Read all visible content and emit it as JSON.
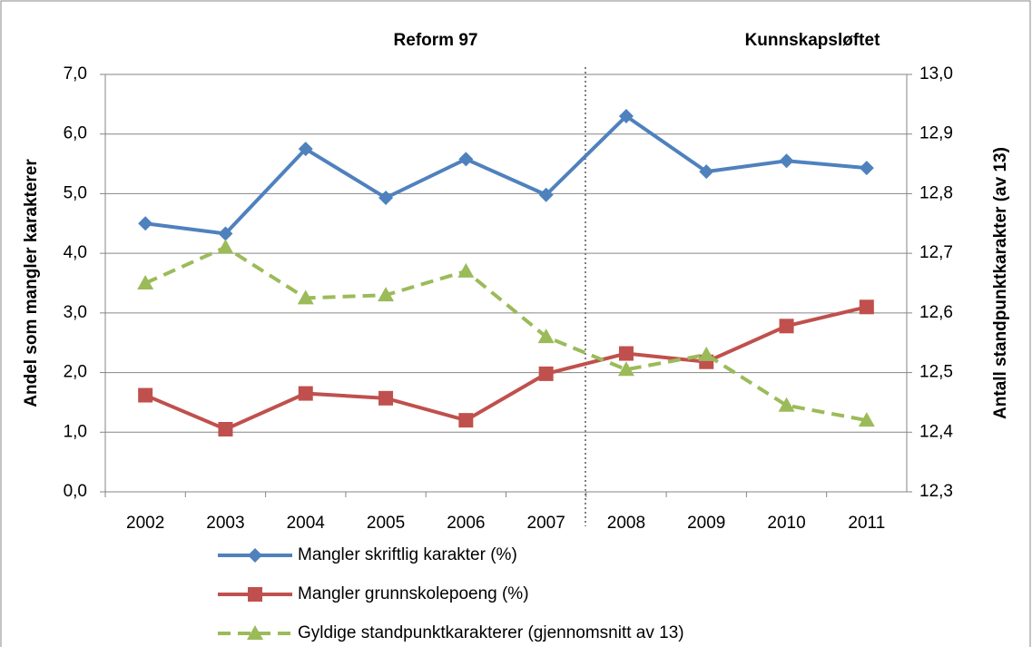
{
  "chart_data": {
    "type": "line",
    "annotations": [
      "Reform 97",
      "Kunnskapsløftet"
    ],
    "ylabel": "Andel som mangler karakterer",
    "y2label": "Antall standpunktkarakter (av 13)",
    "categories": [
      "2002",
      "2003",
      "2004",
      "2005",
      "2006",
      "2007",
      "2008",
      "2009",
      "2010",
      "2011"
    ],
    "series": [
      {
        "name": "Mangler skriftlig karakter (%)",
        "color": "#4f81bd",
        "marker": "diamond",
        "values": [
          4.5,
          4.33,
          5.75,
          4.93,
          5.58,
          4.98,
          6.3,
          5.37,
          5.55,
          5.43
        ]
      },
      {
        "name": "Mangler grunnskolepoeng (%)",
        "color": "#c0504d",
        "marker": "square",
        "values": [
          1.62,
          1.05,
          1.65,
          1.57,
          1.2,
          1.98,
          2.32,
          2.18,
          2.78,
          3.1
        ]
      },
      {
        "name": "Gyldige standpunktkarakterer (gjennomsnitt av 13)",
        "color": "#9bbb59",
        "marker": "triangle",
        "dashed": true,
        "axis": "y2",
        "values": [
          12.65,
          12.71,
          12.625,
          12.63,
          12.67,
          12.56,
          12.505,
          12.53,
          12.445,
          12.42
        ]
      }
    ],
    "ylim": [
      0,
      7
    ],
    "yticks": [
      {
        "value": 0,
        "label": "0,0"
      },
      {
        "value": 1,
        "label": "1,0"
      },
      {
        "value": 2,
        "label": "2,0"
      },
      {
        "value": 3,
        "label": "3,0"
      },
      {
        "value": 4,
        "label": "4,0"
      },
      {
        "value": 5,
        "label": "5,0"
      },
      {
        "value": 6,
        "label": "6,0"
      },
      {
        "value": 7,
        "label": "7,0"
      }
    ],
    "y2lim": [
      12.3,
      13.0
    ],
    "y2ticks": [
      {
        "value": 12.3,
        "label": "12,3"
      },
      {
        "value": 12.4,
        "label": "12,4"
      },
      {
        "value": 12.5,
        "label": "12,5"
      },
      {
        "value": 12.6,
        "label": "12,6"
      },
      {
        "value": 12.7,
        "label": "12,7"
      },
      {
        "value": 12.8,
        "label": "12,8"
      },
      {
        "value": 12.9,
        "label": "12,9"
      },
      {
        "value": 13.0,
        "label": "13,0"
      }
    ],
    "grid": true
  }
}
